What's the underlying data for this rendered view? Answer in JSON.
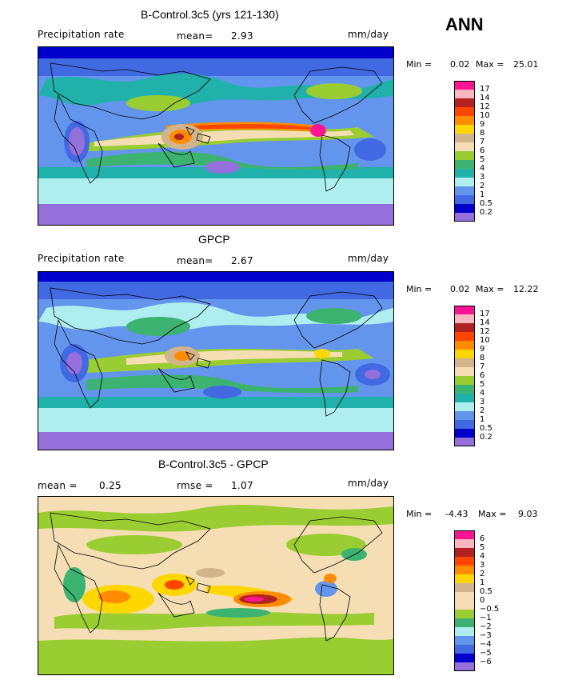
{
  "season": "ANN",
  "panels": [
    {
      "title": "B-Control.3c5 (yrs 121-130)",
      "left_label": "Precipitation rate",
      "stat_label": "mean=",
      "stat_value": "2.93",
      "units": "mm/day",
      "min_label": "Min =",
      "min_value": "0.02",
      "max_label": "Max =",
      "max_value": "25.01",
      "legend": {
        "labels": [
          "17",
          "14",
          "12",
          "10",
          "9",
          "8",
          "7",
          "6",
          "5",
          "4",
          "3",
          "2",
          "1",
          "0.5",
          "0.2"
        ],
        "colors": [
          "#ff1493",
          "#ffb6c1",
          "#b22222",
          "#ff4500",
          "#ff8c00",
          "#ffd700",
          "#d2b48c",
          "#f5deb3",
          "#9acd32",
          "#3cb371",
          "#20b2aa",
          "#afeeee",
          "#6495ed",
          "#4169e1",
          "#0000cd",
          "#9370db"
        ]
      }
    },
    {
      "title": "GPCP",
      "left_label": "Precipitation rate",
      "stat_label": "mean=",
      "stat_value": "2.67",
      "units": "mm/day",
      "min_label": "Min =",
      "min_value": "0.02",
      "max_label": "Max =",
      "max_value": "12.22",
      "legend": {
        "labels": [
          "17",
          "14",
          "12",
          "10",
          "9",
          "8",
          "7",
          "6",
          "5",
          "4",
          "3",
          "2",
          "1",
          "0.5",
          "0.2"
        ],
        "colors": [
          "#ff1493",
          "#ffb6c1",
          "#b22222",
          "#ff4500",
          "#ff8c00",
          "#ffd700",
          "#d2b48c",
          "#f5deb3",
          "#9acd32",
          "#3cb371",
          "#20b2aa",
          "#afeeee",
          "#6495ed",
          "#4169e1",
          "#0000cd",
          "#9370db"
        ]
      }
    },
    {
      "title": "B-Control.3c5 - GPCP",
      "left_label": "mean =",
      "left_value": "0.25",
      "stat_label": "rmse =",
      "stat_value": "1.07",
      "units": "mm/day",
      "min_label": "Min =",
      "min_value": "-4.43",
      "max_label": "Max =",
      "max_value": "9.03",
      "legend": {
        "labels": [
          "6",
          "5",
          "4",
          "3",
          "2",
          "1",
          "0.5",
          "0",
          "−0.5",
          "−1",
          "−2",
          "−3",
          "−4",
          "−5",
          "−6"
        ],
        "colors": [
          "#ff1493",
          "#ffb6c1",
          "#b22222",
          "#ff4500",
          "#ff8c00",
          "#ffd700",
          "#d2b48c",
          "#f5deb3",
          "#f5deb3",
          "#9acd32",
          "#3cb371",
          "#afeeee",
          "#6495ed",
          "#4169e1",
          "#0000cd",
          "#9370db"
        ]
      }
    }
  ]
}
